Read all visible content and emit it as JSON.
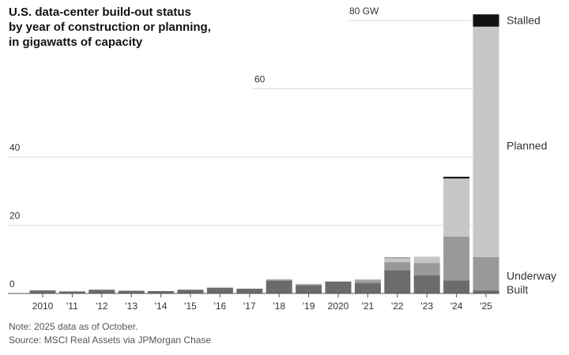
{
  "title_lines": [
    "U.S. data-center build-out status",
    "by year of construction or planning,",
    "in gigawatts of capacity"
  ],
  "footer": {
    "note": "Note: 2025 data as of October.",
    "source": "Source: MSCI Real Assets via JPMorgan Chase"
  },
  "colors": {
    "built": "#6b6b6b",
    "underway": "#999999",
    "planned": "#c7c7c7",
    "stalled": "#121212",
    "grid": "#dddddd",
    "baseline": "#555555"
  },
  "chart_data": {
    "type": "bar",
    "stacked": true,
    "title": "U.S. data-center build-out status by year of construction or planning, in gigawatts of capacity",
    "xlabel": "",
    "ylabel": "",
    "ylim": [
      0,
      80
    ],
    "ytick_values": [
      0,
      20,
      40,
      60,
      80
    ],
    "ytick_labels": [
      "0",
      "20",
      "40",
      "60",
      "80 GW"
    ],
    "grid": true,
    "categories": [
      "2010",
      "'11",
      "'12",
      "'13",
      "'14",
      "'15",
      "'16",
      "'17",
      "'18",
      "'19",
      "2020",
      "'21",
      "'22",
      "'23",
      "'24",
      "'25"
    ],
    "series": [
      {
        "name": "Built",
        "values": [
          0.9,
          0.6,
          1.1,
          0.8,
          0.7,
          1.1,
          1.7,
          1.4,
          3.7,
          2.4,
          3.5,
          3.0,
          6.8,
          5.3,
          3.8,
          0.9
        ]
      },
      {
        "name": "Underway",
        "values": [
          0,
          0,
          0,
          0,
          0,
          0,
          0,
          0,
          0.4,
          0.3,
          0,
          0.9,
          2.4,
          3.6,
          12.9,
          9.8
        ]
      },
      {
        "name": "Planned",
        "values": [
          0,
          0,
          0,
          0,
          0,
          0,
          0,
          0,
          0.1,
          0.1,
          0,
          0.3,
          1.2,
          1.9,
          17.0,
          67.5
        ]
      },
      {
        "name": "Stalled",
        "values": [
          0,
          0,
          0,
          0,
          0,
          0,
          0,
          0,
          0,
          0,
          0,
          0,
          0.1,
          0,
          0.5,
          3.6
        ]
      }
    ],
    "legend": [
      "Stalled",
      "Planned",
      "Underway",
      "Built"
    ],
    "legend_placement": "right"
  }
}
